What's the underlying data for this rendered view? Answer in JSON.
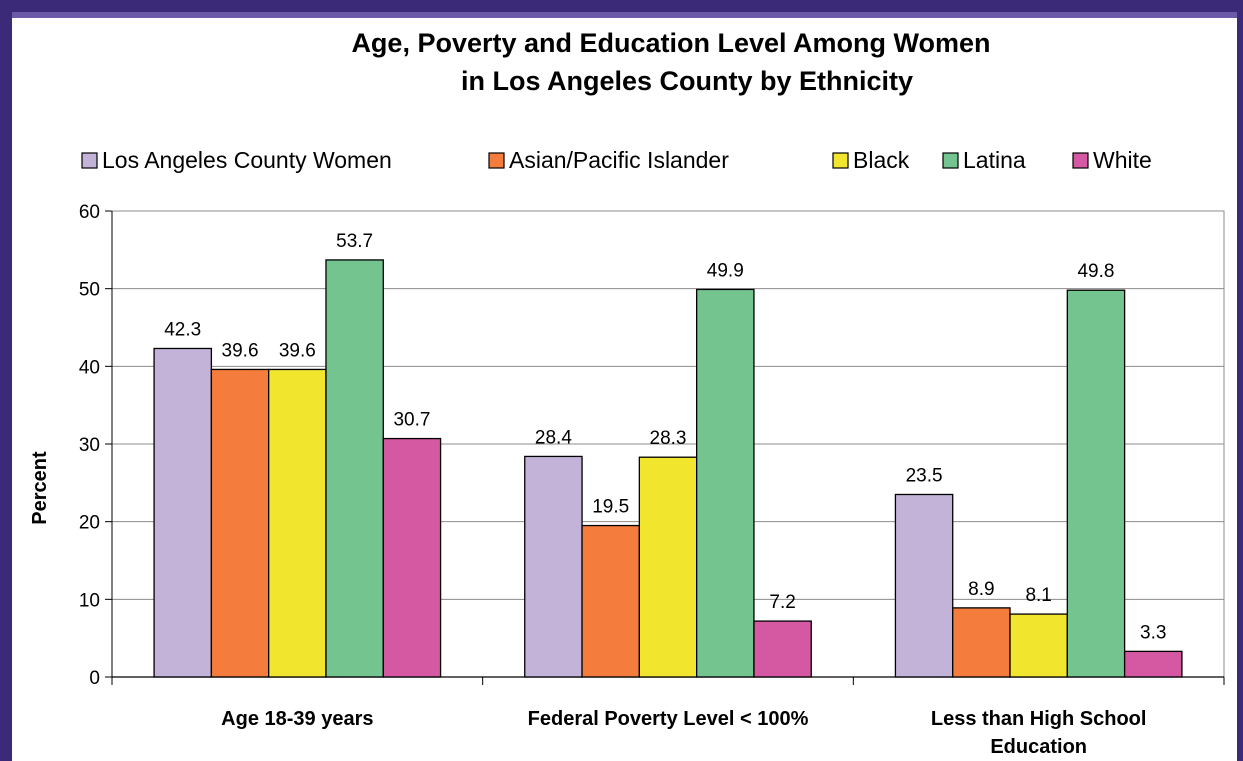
{
  "chart_data": {
    "type": "bar",
    "title_line1": "Age, Poverty and Education Level Among Women",
    "title_line2": "in Los Angeles County by Ethnicity",
    "xlabel": "",
    "ylabel": "Percent",
    "ylim": [
      0,
      60
    ],
    "yticks": [
      "0",
      "10",
      "20",
      "30",
      "40",
      "50",
      "60"
    ],
    "grid": true,
    "legend_position": "top",
    "categories": [
      [
        "Age 18-39 years"
      ],
      [
        "Federal Poverty Level < 100%"
      ],
      [
        "Less than High School",
        "Education"
      ]
    ],
    "series": [
      {
        "name": "Los Angeles County Women",
        "color": "#c3b3d8",
        "values": [
          42.3,
          28.4,
          23.5
        ],
        "labels": [
          "42.3",
          "28.4",
          "23.5"
        ]
      },
      {
        "name": "Asian/Pacific Islander",
        "color": "#f47c3c",
        "values": [
          39.6,
          19.5,
          8.9
        ],
        "labels": [
          "39.6",
          "19.5",
          "8.9"
        ]
      },
      {
        "name": "Black",
        "color": "#f2e52e",
        "values": [
          39.6,
          28.3,
          8.1
        ],
        "labels": [
          "39.6",
          "28.3",
          "8.1"
        ]
      },
      {
        "name": "Latina",
        "color": "#74c490",
        "values": [
          53.7,
          49.9,
          49.8
        ],
        "labels": [
          "53.7",
          "49.9",
          "49.8"
        ]
      },
      {
        "name": "White",
        "color": "#d458a2",
        "values": [
          30.7,
          7.2,
          3.3
        ],
        "labels": [
          "30.7",
          "7.2",
          "3.3"
        ]
      }
    ]
  }
}
